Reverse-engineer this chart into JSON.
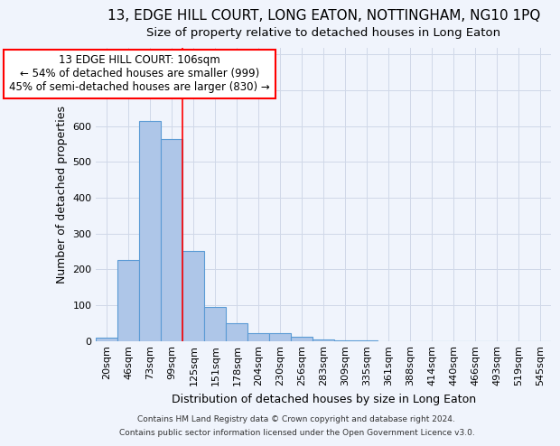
{
  "title1": "13, EDGE HILL COURT, LONG EATON, NOTTINGHAM, NG10 1PQ",
  "title2": "Size of property relative to detached houses in Long Eaton",
  "xlabel": "Distribution of detached houses by size in Long Eaton",
  "ylabel": "Number of detached properties",
  "footnote1": "Contains HM Land Registry data © Crown copyright and database right 2024.",
  "footnote2": "Contains public sector information licensed under the Open Government Licence v3.0.",
  "bin_labels": [
    "20sqm",
    "46sqm",
    "73sqm",
    "99sqm",
    "125sqm",
    "151sqm",
    "178sqm",
    "204sqm",
    "230sqm",
    "256sqm",
    "283sqm",
    "309sqm",
    "335sqm",
    "361sqm",
    "388sqm",
    "414sqm",
    "440sqm",
    "466sqm",
    "493sqm",
    "519sqm",
    "545sqm"
  ],
  "bar_values": [
    10,
    225,
    615,
    565,
    250,
    95,
    48,
    22,
    22,
    12,
    5,
    1,
    1,
    0,
    0,
    0,
    0,
    0,
    0,
    0,
    0
  ],
  "bar_color": "#aec6e8",
  "bar_edge_color": "#5b9bd5",
  "grid_color": "#d0d8e8",
  "red_line_x": 3.5,
  "annotation_line1": "13 EDGE HILL COURT: 106sqm",
  "annotation_line2": "← 54% of detached houses are smaller (999)",
  "annotation_line3": "45% of semi-detached houses are larger (830) →",
  "annotation_box_color": "white",
  "annotation_box_edge": "red",
  "ylim": [
    0,
    820
  ],
  "yticks": [
    0,
    100,
    200,
    300,
    400,
    500,
    600,
    700,
    800
  ],
  "bg_color": "#f0f4fc",
  "title1_fontsize": 11,
  "title2_fontsize": 9.5,
  "annot_fontsize": 8.5,
  "xlabel_fontsize": 9,
  "ylabel_fontsize": 9,
  "tick_fontsize": 8,
  "footnote_fontsize": 6.5
}
